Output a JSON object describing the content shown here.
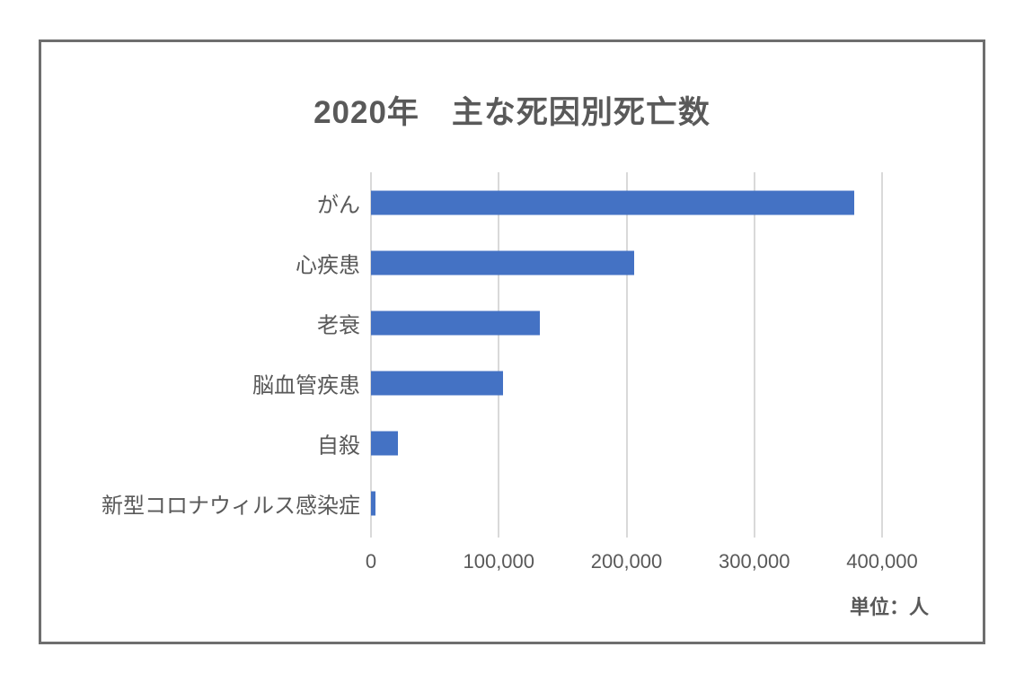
{
  "page": {
    "background": "#ffffff",
    "frame_border_color": "#6e6e6e"
  },
  "chart_data": {
    "type": "bar",
    "orientation": "horizontal",
    "title": "2020年　主な死因別死亡数",
    "categories": [
      "がん",
      "心疾患",
      "老衰",
      "脳血管疾患",
      "自殺",
      "新型コロナウィルス感染症"
    ],
    "values": [
      378000,
      206000,
      132000,
      103000,
      21000,
      3500
    ],
    "xlabel": "",
    "ylabel": "",
    "xlim": [
      0,
      400000
    ],
    "x_ticks": [
      0,
      100000,
      200000,
      300000,
      400000
    ],
    "x_tick_labels": [
      "0",
      "100,000",
      "200,000",
      "300,000",
      "400,000"
    ],
    "unit_label": "単位：人",
    "grid": true,
    "legend": false,
    "bar_color": "#4472C4",
    "gridline_color": "#D9D9D9",
    "text_color": "#595959"
  }
}
